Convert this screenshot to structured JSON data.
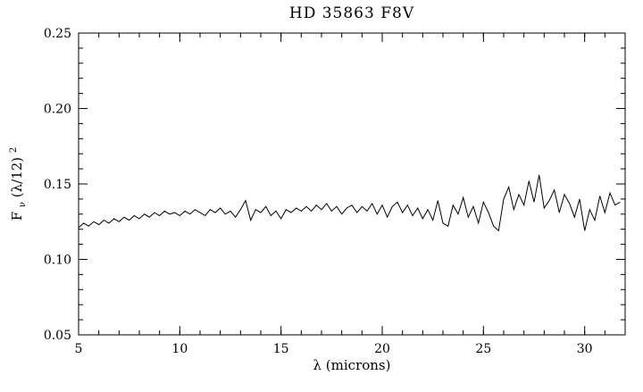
{
  "colors": {
    "background": "#ffffff",
    "line": "#000000",
    "frame": "#000000",
    "text": "#000000"
  },
  "chart_data": {
    "type": "line",
    "title": "HD 35863 F8V",
    "xlabel": "λ (microns)",
    "ylabel": "Fν(λ/12)²",
    "ylabel_parts": [
      "F",
      "ν",
      "(λ/12)",
      "2"
    ],
    "xlim": [
      5,
      32
    ],
    "ylim": [
      0.05,
      0.25
    ],
    "x_ticks": [
      5,
      10,
      15,
      20,
      25,
      30
    ],
    "x_tick_labels": [
      "5",
      "10",
      "15",
      "20",
      "25",
      "30"
    ],
    "x_minor_step": 1,
    "y_ticks": [
      0.05,
      0.1,
      0.15,
      0.2,
      0.25
    ],
    "y_tick_labels": [
      "0.05",
      "0.10",
      "0.15",
      "0.20",
      "0.25"
    ],
    "y_minor_step": 0.01,
    "grid": false,
    "legend": "none",
    "series": [
      {
        "name": "HD 35863 spectrum",
        "x_start": 5.0,
        "x_step": 0.25,
        "values": [
          0.121,
          0.124,
          0.122,
          0.125,
          0.123,
          0.126,
          0.124,
          0.127,
          0.125,
          0.128,
          0.126,
          0.129,
          0.127,
          0.13,
          0.128,
          0.131,
          0.129,
          0.132,
          0.13,
          0.131,
          0.129,
          0.132,
          0.13,
          0.133,
          0.131,
          0.129,
          0.133,
          0.131,
          0.134,
          0.13,
          0.132,
          0.128,
          0.133,
          0.139,
          0.126,
          0.133,
          0.131,
          0.135,
          0.129,
          0.132,
          0.127,
          0.133,
          0.131,
          0.134,
          0.132,
          0.135,
          0.132,
          0.136,
          0.133,
          0.137,
          0.132,
          0.135,
          0.13,
          0.134,
          0.136,
          0.131,
          0.135,
          0.132,
          0.137,
          0.13,
          0.136,
          0.128,
          0.135,
          0.138,
          0.131,
          0.136,
          0.129,
          0.134,
          0.127,
          0.133,
          0.126,
          0.139,
          0.124,
          0.122,
          0.136,
          0.13,
          0.141,
          0.128,
          0.135,
          0.124,
          0.138,
          0.131,
          0.122,
          0.119,
          0.14,
          0.148,
          0.133,
          0.143,
          0.136,
          0.152,
          0.138,
          0.156,
          0.134,
          0.139,
          0.146,
          0.131,
          0.143,
          0.137,
          0.128,
          0.14,
          0.119,
          0.133,
          0.126,
          0.142,
          0.131,
          0.144,
          0.136,
          0.138
        ]
      }
    ]
  }
}
